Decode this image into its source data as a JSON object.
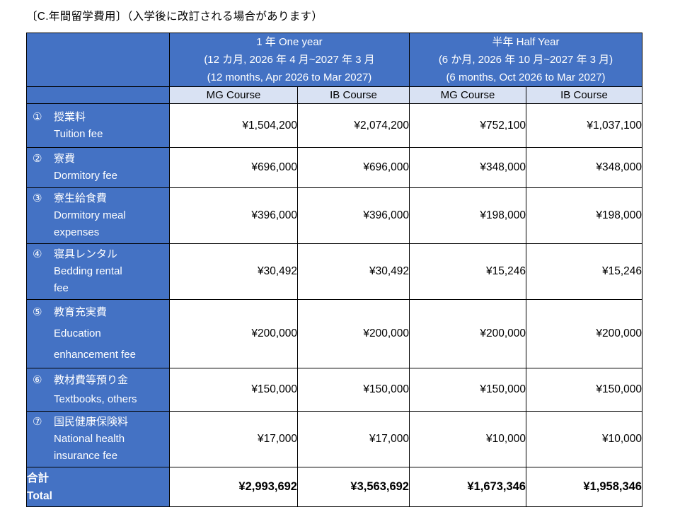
{
  "title": "〔C.年間留学費用〕（入学後に改訂される場合があります）",
  "header": {
    "groups": [
      {
        "line1": "1 年 One year",
        "line2": "(12 カ月, 2026 年 4 月~2027 年 3 月",
        "line3": "(12 months, Apr 2026 to Mar 2027)"
      },
      {
        "line1": "半年 Half Year",
        "line2": "(6 か月, 2026 年 10 月~2027 年 3 月)",
        "line3": "(6 months, Oct 2026 to Mar 2027)"
      }
    ],
    "course_cols": [
      "MG Course",
      "IB Course",
      "MG Course",
      "IB Course"
    ]
  },
  "rows": [
    {
      "num": "①",
      "ja": "授業料",
      "en": "Tuition fee",
      "values": [
        "¥1,504,200",
        "¥2,074,200",
        "¥752,100",
        "¥1,037,100"
      ]
    },
    {
      "num": "②",
      "ja": "寮費",
      "en": "Dormitory fee",
      "values": [
        "¥696,000",
        "¥696,000",
        "¥348,000",
        "¥348,000"
      ]
    },
    {
      "num": "③",
      "ja": "寮生給食費",
      "en": "Dormitory meal\nexpenses",
      "values": [
        "¥396,000",
        "¥396,000",
        "¥198,000",
        "¥198,000"
      ]
    },
    {
      "num": "④",
      "ja": "寝具レンタル",
      "en": "Bedding rental\nfee",
      "values": [
        "¥30,492",
        "¥30,492",
        "¥15,246",
        "¥15,246"
      ]
    },
    {
      "num": "⑤",
      "ja": "教育充実費",
      "en": "Education\nenhancement fee",
      "values": [
        "¥200,000",
        "¥200,000",
        "¥200,000",
        "¥200,000"
      ]
    },
    {
      "num": "⑥",
      "ja": "教材費等預り金",
      "en": "Textbooks, others",
      "values": [
        "¥150,000",
        "¥150,000",
        "¥150,000",
        "¥150,000"
      ]
    },
    {
      "num": "⑦",
      "ja": "国民健康保険料",
      "en": "National health\ninsurance fee",
      "values": [
        "¥17,000",
        "¥17,000",
        "¥10,000",
        "¥10,000"
      ]
    }
  ],
  "total": {
    "ja": "合計",
    "en": "Total",
    "values": [
      "¥2,993,692",
      "¥3,563,692",
      "¥1,673,346",
      "¥1,958,346"
    ]
  },
  "colors": {
    "header_blue": "#4472C4",
    "course_row_bg": "#D9E2F3",
    "border": "#000000"
  }
}
